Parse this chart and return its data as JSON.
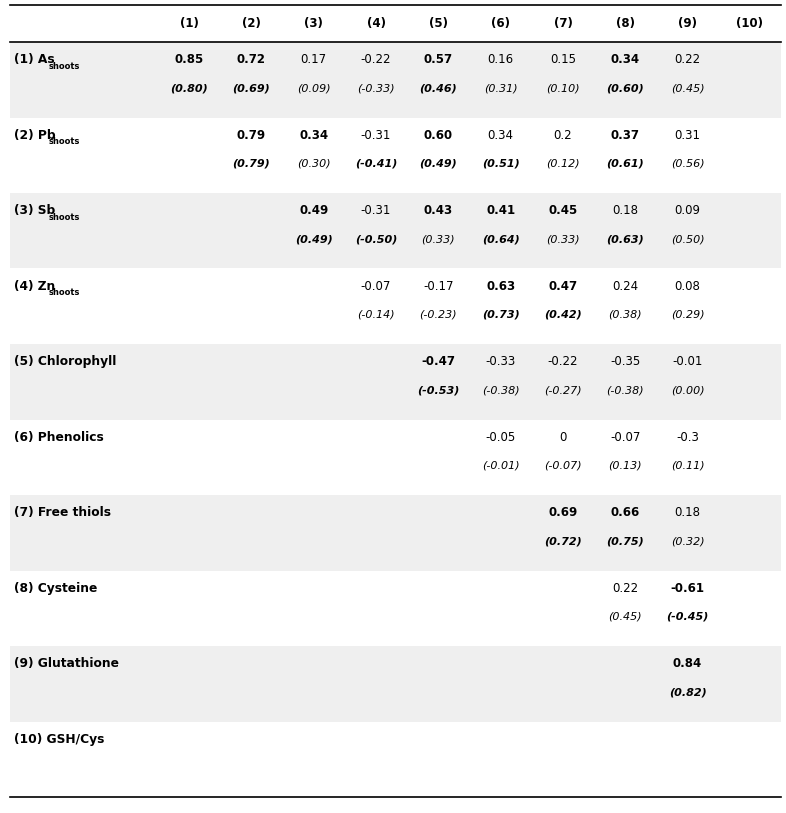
{
  "col_headers": [
    "(1)",
    "(2)",
    "(3)",
    "(4)",
    "(5)",
    "(6)",
    "(7)",
    "(8)",
    "(9)",
    "(10)"
  ],
  "row_label_main": [
    "(1) As",
    "(2) Pb",
    "(3) Sb",
    "(4) Zn",
    "(5) Chlorophyll",
    "(6) Phenolics",
    "(7) Free thiols",
    "(8) Cysteine",
    "(9) Glutathione",
    "(10) GSH/Cys"
  ],
  "row_label_sub": [
    "shoots",
    "shoots",
    "shoots",
    "shoots",
    "",
    "",
    "",
    "",
    "",
    ""
  ],
  "data": [
    {
      "row": 0,
      "values": [
        {
          "col": 1,
          "top": "0.85",
          "bottom": "(0.80)",
          "bold_top": true,
          "bold_bottom": true
        },
        {
          "col": 2,
          "top": "0.72",
          "bottom": "(0.69)",
          "bold_top": true,
          "bold_bottom": true
        },
        {
          "col": 3,
          "top": "0.17",
          "bottom": "(0.09)",
          "bold_top": false,
          "bold_bottom": false
        },
        {
          "col": 4,
          "top": "-0.22",
          "bottom": "(-0.33)",
          "bold_top": false,
          "bold_bottom": false
        },
        {
          "col": 5,
          "top": "0.57",
          "bottom": "(0.46)",
          "bold_top": true,
          "bold_bottom": true
        },
        {
          "col": 6,
          "top": "0.16",
          "bottom": "(0.31)",
          "bold_top": false,
          "bold_bottom": false
        },
        {
          "col": 7,
          "top": "0.15",
          "bottom": "(0.10)",
          "bold_top": false,
          "bold_bottom": false
        },
        {
          "col": 8,
          "top": "0.34",
          "bottom": "(0.60)",
          "bold_top": true,
          "bold_bottom": true
        },
        {
          "col": 9,
          "top": "0.22",
          "bottom": "(0.45)",
          "bold_top": false,
          "bold_bottom": false
        }
      ]
    },
    {
      "row": 1,
      "values": [
        {
          "col": 2,
          "top": "0.79",
          "bottom": "(0.79)",
          "bold_top": true,
          "bold_bottom": true
        },
        {
          "col": 3,
          "top": "0.34",
          "bottom": "(0.30)",
          "bold_top": true,
          "bold_bottom": false
        },
        {
          "col": 4,
          "top": "-0.31",
          "bottom": "(-0.41)",
          "bold_top": false,
          "bold_bottom": true
        },
        {
          "col": 5,
          "top": "0.60",
          "bottom": "(0.49)",
          "bold_top": true,
          "bold_bottom": true
        },
        {
          "col": 6,
          "top": "0.34",
          "bottom": "(0.51)",
          "bold_top": false,
          "bold_bottom": true
        },
        {
          "col": 7,
          "top": "0.2",
          "bottom": "(0.12)",
          "bold_top": false,
          "bold_bottom": false
        },
        {
          "col": 8,
          "top": "0.37",
          "bottom": "(0.61)",
          "bold_top": true,
          "bold_bottom": true
        },
        {
          "col": 9,
          "top": "0.31",
          "bottom": "(0.56)",
          "bold_top": false,
          "bold_bottom": false
        }
      ]
    },
    {
      "row": 2,
      "values": [
        {
          "col": 3,
          "top": "0.49",
          "bottom": "(0.49)",
          "bold_top": true,
          "bold_bottom": true
        },
        {
          "col": 4,
          "top": "-0.31",
          "bottom": "(-0.50)",
          "bold_top": false,
          "bold_bottom": true
        },
        {
          "col": 5,
          "top": "0.43",
          "bottom": "(0.33)",
          "bold_top": true,
          "bold_bottom": false
        },
        {
          "col": 6,
          "top": "0.41",
          "bottom": "(0.64)",
          "bold_top": true,
          "bold_bottom": true
        },
        {
          "col": 7,
          "top": "0.45",
          "bottom": "(0.33)",
          "bold_top": true,
          "bold_bottom": false
        },
        {
          "col": 8,
          "top": "0.18",
          "bottom": "(0.63)",
          "bold_top": false,
          "bold_bottom": true
        },
        {
          "col": 9,
          "top": "0.09",
          "bottom": "(0.50)",
          "bold_top": false,
          "bold_bottom": false
        }
      ]
    },
    {
      "row": 3,
      "values": [
        {
          "col": 4,
          "top": "-0.07",
          "bottom": "(-0.14)",
          "bold_top": false,
          "bold_bottom": false
        },
        {
          "col": 5,
          "top": "-0.17",
          "bottom": "(-0.23)",
          "bold_top": false,
          "bold_bottom": false
        },
        {
          "col": 6,
          "top": "0.63",
          "bottom": "(0.73)",
          "bold_top": true,
          "bold_bottom": true
        },
        {
          "col": 7,
          "top": "0.47",
          "bottom": "(0.42)",
          "bold_top": true,
          "bold_bottom": true
        },
        {
          "col": 8,
          "top": "0.24",
          "bottom": "(0.38)",
          "bold_top": false,
          "bold_bottom": false
        },
        {
          "col": 9,
          "top": "0.08",
          "bottom": "(0.29)",
          "bold_top": false,
          "bold_bottom": false
        }
      ]
    },
    {
      "row": 4,
      "values": [
        {
          "col": 5,
          "top": "-0.47",
          "bottom": "(-0.53)",
          "bold_top": true,
          "bold_bottom": true
        },
        {
          "col": 6,
          "top": "-0.33",
          "bottom": "(-0.38)",
          "bold_top": false,
          "bold_bottom": false
        },
        {
          "col": 7,
          "top": "-0.22",
          "bottom": "(-0.27)",
          "bold_top": false,
          "bold_bottom": false
        },
        {
          "col": 8,
          "top": "-0.35",
          "bottom": "(-0.38)",
          "bold_top": false,
          "bold_bottom": false
        },
        {
          "col": 9,
          "top": "-0.01",
          "bottom": "(0.00)",
          "bold_top": false,
          "bold_bottom": false
        }
      ]
    },
    {
      "row": 5,
      "values": [
        {
          "col": 6,
          "top": "-0.05",
          "bottom": "(-0.01)",
          "bold_top": false,
          "bold_bottom": false
        },
        {
          "col": 7,
          "top": "0",
          "bottom": "(-0.07)",
          "bold_top": false,
          "bold_bottom": false
        },
        {
          "col": 8,
          "top": "-0.07",
          "bottom": "(0.13)",
          "bold_top": false,
          "bold_bottom": false
        },
        {
          "col": 9,
          "top": "-0.3",
          "bottom": "(0.11)",
          "bold_top": false,
          "bold_bottom": false
        }
      ]
    },
    {
      "row": 6,
      "values": [
        {
          "col": 7,
          "top": "0.69",
          "bottom": "(0.72)",
          "bold_top": true,
          "bold_bottom": true
        },
        {
          "col": 8,
          "top": "0.66",
          "bottom": "(0.75)",
          "bold_top": true,
          "bold_bottom": true
        },
        {
          "col": 9,
          "top": "0.18",
          "bottom": "(0.32)",
          "bold_top": false,
          "bold_bottom": false
        }
      ]
    },
    {
      "row": 7,
      "values": [
        {
          "col": 8,
          "top": "0.22",
          "bottom": "(0.45)",
          "bold_top": false,
          "bold_bottom": false
        },
        {
          "col": 9,
          "top": "-0.61",
          "bottom": "(-0.45)",
          "bold_top": true,
          "bold_bottom": true
        }
      ]
    },
    {
      "row": 8,
      "values": [
        {
          "col": 9,
          "top": "0.84",
          "bottom": "(0.82)",
          "bold_top": true,
          "bold_bottom": true
        }
      ]
    },
    {
      "row": 9,
      "values": []
    }
  ],
  "bg_colors": [
    "#efefef",
    "#ffffff",
    "#efefef",
    "#ffffff",
    "#efefef",
    "#ffffff",
    "#efefef",
    "#ffffff",
    "#efefef",
    "#ffffff"
  ],
  "figure_bg": "#ffffff"
}
